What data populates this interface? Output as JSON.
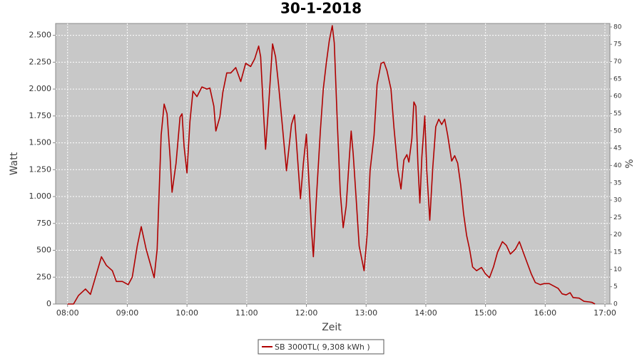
{
  "chart_data": {
    "type": "line",
    "title": "30-1-2018",
    "xlabel": "Zeit",
    "ylabel": "Watt",
    "y2label": "%",
    "x": [
      "08:00",
      "08:06",
      "08:11",
      "08:18",
      "08:23",
      "08:29",
      "08:34",
      "08:39",
      "08:45",
      "08:49",
      "08:55",
      "09:01",
      "09:05",
      "09:10",
      "09:14",
      "09:19",
      "09:24",
      "09:27",
      "09:30",
      "09:34",
      "09:37",
      "09:40",
      "09:43",
      "09:45",
      "09:49",
      "09:53",
      "09:55",
      "09:57",
      "10:00",
      "10:03",
      "10:06",
      "10:10",
      "10:15",
      "10:20",
      "10:23",
      "10:27",
      "10:29",
      "10:33",
      "10:36",
      "10:40",
      "10:44",
      "10:49",
      "10:54",
      "10:59",
      "11:04",
      "11:08",
      "11:12",
      "11:14",
      "11:17",
      "11:19",
      "11:22",
      "11:26",
      "11:29",
      "11:32",
      "11:36",
      "11:40",
      "11:42",
      "11:45",
      "11:48",
      "11:51",
      "11:54",
      "11:57",
      "12:00",
      "12:02",
      "12:05",
      "12:07",
      "12:10",
      "12:14",
      "12:17",
      "12:20",
      "12:23",
      "12:26",
      "12:28",
      "12:31",
      "12:34",
      "12:37",
      "12:40",
      "12:43",
      "12:45",
      "12:47",
      "12:50",
      "12:53",
      "12:58",
      "13:01",
      "13:04",
      "13:08",
      "13:11",
      "13:15",
      "13:18",
      "13:21",
      "13:25",
      "13:28",
      "13:32",
      "13:35",
      "13:38",
      "13:41",
      "13:43",
      "13:46",
      "13:48",
      "13:50",
      "13:52",
      "13:54",
      "13:56",
      "13:59",
      "14:01",
      "14:04",
      "14:07",
      "14:10",
      "14:13",
      "14:16",
      "14:19",
      "14:22",
      "14:26",
      "14:29",
      "14:32",
      "14:35",
      "14:38",
      "14:41",
      "14:44",
      "14:47",
      "14:51",
      "14:56",
      "15:00",
      "15:04",
      "15:08",
      "15:12",
      "15:17",
      "15:21",
      "15:25",
      "15:30",
      "15:34",
      "15:38",
      "15:42",
      "15:46",
      "15:50",
      "15:55",
      "15:59",
      "16:04",
      "16:08",
      "16:13",
      "16:17",
      "16:21",
      "16:25",
      "16:28",
      "16:34",
      "16:39",
      "16:44",
      "16:47",
      "16:50"
    ],
    "series": [
      {
        "name": "SB 3000TL( 9,308 kWh )",
        "color": "#b00000",
        "values": [
          0,
          0,
          80,
          140,
          90,
          280,
          440,
          360,
          310,
          210,
          210,
          180,
          250,
          540,
          720,
          510,
          345,
          245,
          510,
          1570,
          1860,
          1770,
          1370,
          1040,
          1310,
          1740,
          1770,
          1470,
          1220,
          1700,
          1980,
          1930,
          2020,
          2000,
          2010,
          1840,
          1610,
          1740,
          1970,
          2150,
          2150,
          2200,
          2070,
          2240,
          2210,
          2280,
          2400,
          2300,
          1770,
          1440,
          1840,
          2420,
          2300,
          2040,
          1640,
          1240,
          1410,
          1670,
          1760,
          1370,
          980,
          1310,
          1580,
          1240,
          710,
          440,
          980,
          1610,
          2000,
          2240,
          2450,
          2590,
          2430,
          1700,
          1040,
          710,
          910,
          1340,
          1610,
          1400,
          980,
          540,
          310,
          640,
          1240,
          1570,
          2040,
          2240,
          2250,
          2170,
          2000,
          1640,
          1240,
          1070,
          1340,
          1390,
          1320,
          1540,
          1880,
          1840,
          1310,
          940,
          1370,
          1750,
          1240,
          780,
          1270,
          1650,
          1720,
          1670,
          1720,
          1570,
          1330,
          1380,
          1310,
          1110,
          840,
          640,
          510,
          345,
          310,
          340,
          280,
          245,
          345,
          480,
          580,
          545,
          465,
          510,
          580,
          480,
          380,
          280,
          200,
          180,
          190,
          190,
          170,
          145,
          95,
          85,
          105,
          60,
          55,
          25,
          20,
          15,
          0
        ]
      }
    ],
    "xlim": [
      "07:48",
      "17:05"
    ],
    "xticks": [
      "08:00",
      "09:00",
      "10:00",
      "11:00",
      "12:00",
      "13:00",
      "14:00",
      "15:00",
      "16:00",
      "17:00"
    ],
    "ylim": [
      0,
      2610
    ],
    "yticks": [
      0,
      {
        "value": 250,
        "label": "250"
      },
      {
        "value": 500,
        "label": "500"
      },
      {
        "value": 750,
        "label": "750"
      },
      {
        "value": 1000,
        "label": "1.000"
      },
      {
        "value": 1250,
        "label": "1.250"
      },
      {
        "value": 1500,
        "label": "1.500"
      },
      {
        "value": 1750,
        "label": "1.750"
      },
      {
        "value": 2000,
        "label": "2.000"
      },
      {
        "value": 2250,
        "label": "2.250"
      },
      {
        "value": 2500,
        "label": "2.500"
      }
    ],
    "y2lim": [
      0,
      81
    ],
    "y2ticks": [
      0,
      5,
      10,
      15,
      20,
      25,
      30,
      35,
      40,
      45,
      50,
      55,
      60,
      65,
      70,
      75,
      80
    ],
    "grid": true
  }
}
